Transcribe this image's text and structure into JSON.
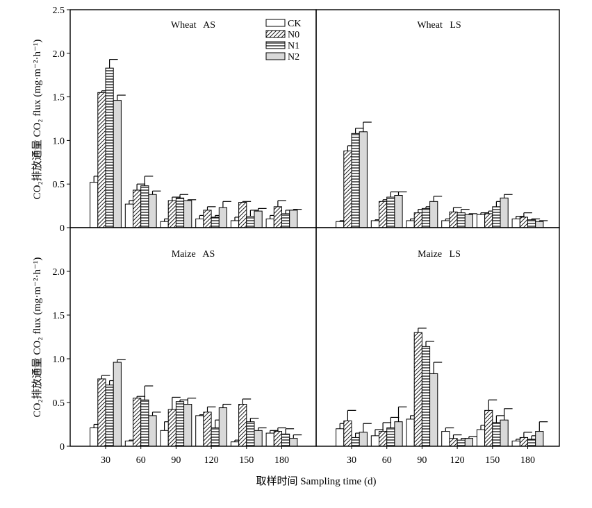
{
  "x_axis_label": "取样时间 Sampling time (d)",
  "legend": [
    {
      "name": "CK",
      "pattern": "white"
    },
    {
      "name": "N0",
      "pattern": "diagonal"
    },
    {
      "name": "N1",
      "pattern": "horizontal"
    },
    {
      "name": "N2",
      "pattern": "grey"
    }
  ],
  "colors": {
    "grey_fill": "#d9d9d9",
    "stroke": "#000000",
    "background": "#ffffff"
  },
  "chart_data": [
    {
      "type": "bar",
      "title": "Wheat   AS",
      "categories": [
        "30",
        "60",
        "90",
        "120",
        "150",
        "180"
      ],
      "ylabel": "CO₂排放通量 CO₂ flux (mg·m⁻²·h⁻¹)",
      "ylim": [
        0,
        2.5
      ],
      "yticks": [
        "0",
        "0.5",
        "1.0",
        "1.5",
        "2.0",
        "2.5"
      ],
      "series": [
        {
          "name": "CK",
          "values": [
            0.52,
            0.27,
            0.07,
            0.1,
            0.08,
            0.1
          ],
          "errors": [
            0.07,
            0.04,
            0.03,
            0.04,
            0.04,
            0.04
          ]
        },
        {
          "name": "N0",
          "values": [
            1.55,
            0.43,
            0.31,
            0.2,
            0.29,
            0.24
          ],
          "errors": [
            0.02,
            0.07,
            0.04,
            0.04,
            0.01,
            0.07
          ]
        },
        {
          "name": "N1",
          "values": [
            1.83,
            0.48,
            0.34,
            0.12,
            0.13,
            0.16
          ],
          "errors": [
            0.1,
            0.11,
            0.04,
            0.02,
            0.07,
            0.04
          ]
        },
        {
          "name": "N2",
          "values": [
            1.46,
            0.38,
            0.31,
            0.23,
            0.19,
            0.2
          ],
          "errors": [
            0.06,
            0.04,
            0.01,
            0.07,
            0.03,
            0.01
          ]
        }
      ]
    },
    {
      "type": "bar",
      "title": "Wheat   LS",
      "categories": [
        "30",
        "60",
        "90",
        "120",
        "150",
        "180"
      ],
      "ylim": [
        0,
        2.5
      ],
      "series": [
        {
          "name": "CK",
          "values": [
            0.07,
            0.08,
            0.08,
            0.08,
            0.15,
            0.1
          ],
          "errors": [
            0.01,
            0.01,
            0.02,
            0.02,
            0.02,
            0.03
          ]
        },
        {
          "name": "N0",
          "values": [
            0.88,
            0.3,
            0.17,
            0.18,
            0.16,
            0.12
          ],
          "errors": [
            0.06,
            0.02,
            0.04,
            0.05,
            0.03,
            0.05
          ]
        },
        {
          "name": "N1",
          "values": [
            1.08,
            0.35,
            0.22,
            0.17,
            0.24,
            0.09
          ],
          "errors": [
            0.06,
            0.06,
            0.02,
            0.04,
            0.06,
            0.01
          ]
        },
        {
          "name": "N2",
          "values": [
            1.1,
            0.37,
            0.3,
            0.15,
            0.34,
            0.07
          ],
          "errors": [
            0.11,
            0.04,
            0.06,
            0.01,
            0.04,
            0.01
          ]
        }
      ]
    },
    {
      "type": "bar",
      "title": "Maize   AS",
      "categories": [
        "30",
        "60",
        "90",
        "120",
        "150",
        "180"
      ],
      "ylabel": "CO₂排放通量 CO₂ flux (mg·m⁻²·h⁻¹)",
      "ylim": [
        0,
        2.5
      ],
      "yticks": [
        "0",
        "0.5",
        "1.0",
        "1.5",
        "2.0"
      ],
      "series": [
        {
          "name": "CK",
          "values": [
            0.21,
            0.06,
            0.18,
            0.35,
            0.05,
            0.15
          ],
          "errors": [
            0.04,
            0.01,
            0.1,
            0.01,
            0.02,
            0.03
          ]
        },
        {
          "name": "N0",
          "values": [
            0.77,
            0.55,
            0.42,
            0.39,
            0.48,
            0.17
          ],
          "errors": [
            0.04,
            0.02,
            0.14,
            0.06,
            0.06,
            0.04
          ]
        },
        {
          "name": "N1",
          "values": [
            0.7,
            0.53,
            0.51,
            0.21,
            0.28,
            0.14
          ],
          "errors": [
            0.05,
            0.16,
            0.02,
            0.09,
            0.04,
            0.06
          ]
        },
        {
          "name": "N2",
          "values": [
            0.96,
            0.35,
            0.48,
            0.44,
            0.18,
            0.09
          ],
          "errors": [
            0.03,
            0.04,
            0.07,
            0.04,
            0.03,
            0.04
          ]
        }
      ]
    },
    {
      "type": "bar",
      "title": "Maize   LS",
      "categories": [
        "30",
        "60",
        "90",
        "120",
        "150",
        "180"
      ],
      "ylim": [
        0,
        2.5
      ],
      "series": [
        {
          "name": "CK",
          "values": [
            0.2,
            0.12,
            0.31,
            0.17,
            0.19,
            0.06
          ],
          "errors": [
            0.06,
            0.07,
            0.04,
            0.04,
            0.05,
            0.02
          ]
        },
        {
          "name": "N0",
          "values": [
            0.29,
            0.17,
            1.3,
            0.09,
            0.41,
            0.1
          ],
          "errors": [
            0.12,
            0.1,
            0.05,
            0.04,
            0.12,
            0.06
          ]
        },
        {
          "name": "N1",
          "values": [
            0.1,
            0.21,
            1.14,
            0.07,
            0.27,
            0.08
          ],
          "errors": [
            0.05,
            0.12,
            0.06,
            0.02,
            0.08,
            0.04
          ]
        },
        {
          "name": "N2",
          "values": [
            0.16,
            0.28,
            0.83,
            0.09,
            0.3,
            0.17
          ],
          "errors": [
            0.1,
            0.17,
            0.13,
            0.02,
            0.13,
            0.11
          ]
        }
      ]
    }
  ]
}
